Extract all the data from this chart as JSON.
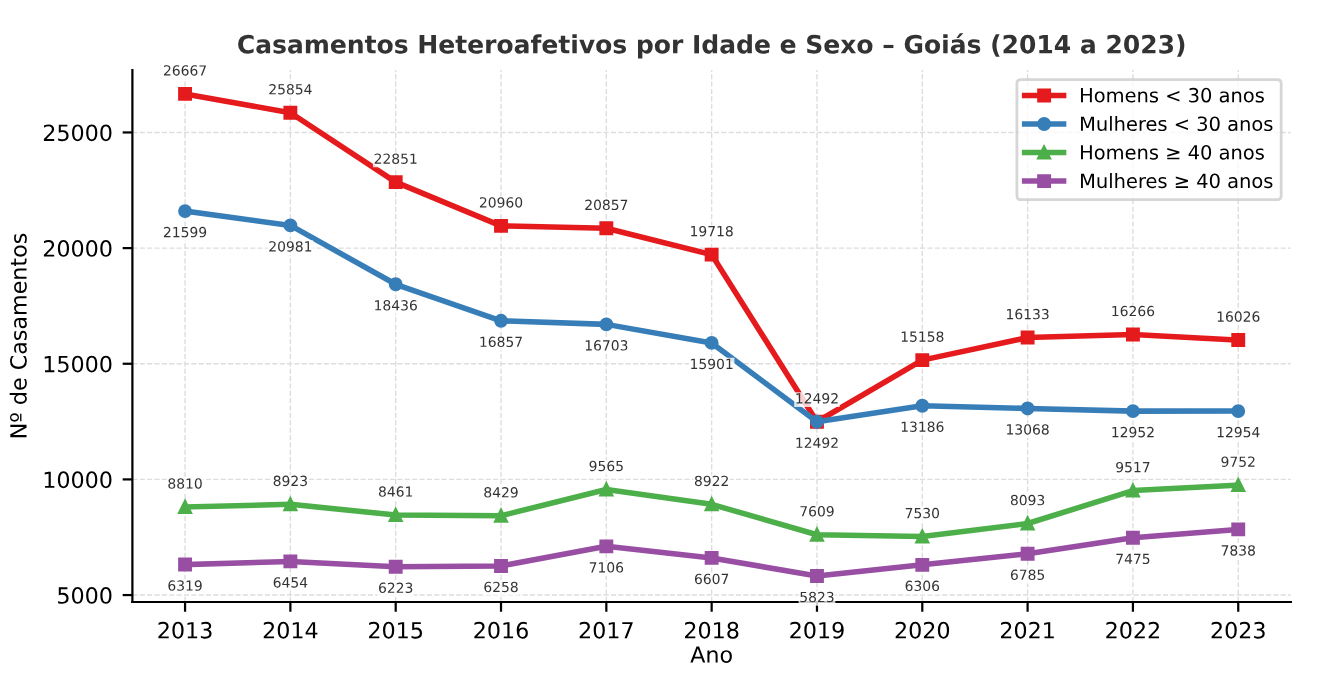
{
  "chart_data": {
    "type": "line",
    "title": "Casamentos Heteroafetivos por Idade e Sexo – Goiás (2014 a 2023)",
    "xlabel": "Ano",
    "ylabel": "Nº de Casamentos",
    "x": [
      2013,
      2014,
      2015,
      2016,
      2017,
      2018,
      2019,
      2020,
      2021,
      2022,
      2023
    ],
    "series": [
      {
        "name": "Homens < 30 anos",
        "color": "#e41a1c",
        "marker": "square",
        "values": [
          26667,
          25854,
          22851,
          20960,
          20857,
          19718,
          12492,
          15158,
          16133,
          16266,
          16026
        ]
      },
      {
        "name": "Mulheres < 30 anos",
        "color": "#377eb8",
        "marker": "circle",
        "values": [
          21599,
          20981,
          18436,
          16857,
          16703,
          15901,
          12492,
          13186,
          13068,
          12952,
          12954
        ]
      },
      {
        "name": "Homens ≥ 40 anos",
        "color": "#4daf4a",
        "marker": "triangle",
        "values": [
          8810,
          8923,
          8461,
          8429,
          9565,
          8922,
          7609,
          7530,
          8093,
          9517,
          9752
        ]
      },
      {
        "name": "Mulheres ≥ 40 anos",
        "color": "#984ea3",
        "marker": "square",
        "values": [
          6319,
          6454,
          6223,
          6258,
          7106,
          6607,
          5823,
          6306,
          6785,
          7475,
          7838
        ]
      }
    ],
    "xlim": [
      2012.5,
      2023.5
    ],
    "xticks": [
      2013,
      2014,
      2015,
      2016,
      2017,
      2018,
      2019,
      2020,
      2021,
      2022,
      2023
    ],
    "ylim": [
      4700,
      27700
    ],
    "yticks": [
      5000,
      10000,
      15000,
      20000,
      25000
    ],
    "grid": true,
    "legend": "top right",
    "data_labels": true,
    "line_style": "solid"
  }
}
